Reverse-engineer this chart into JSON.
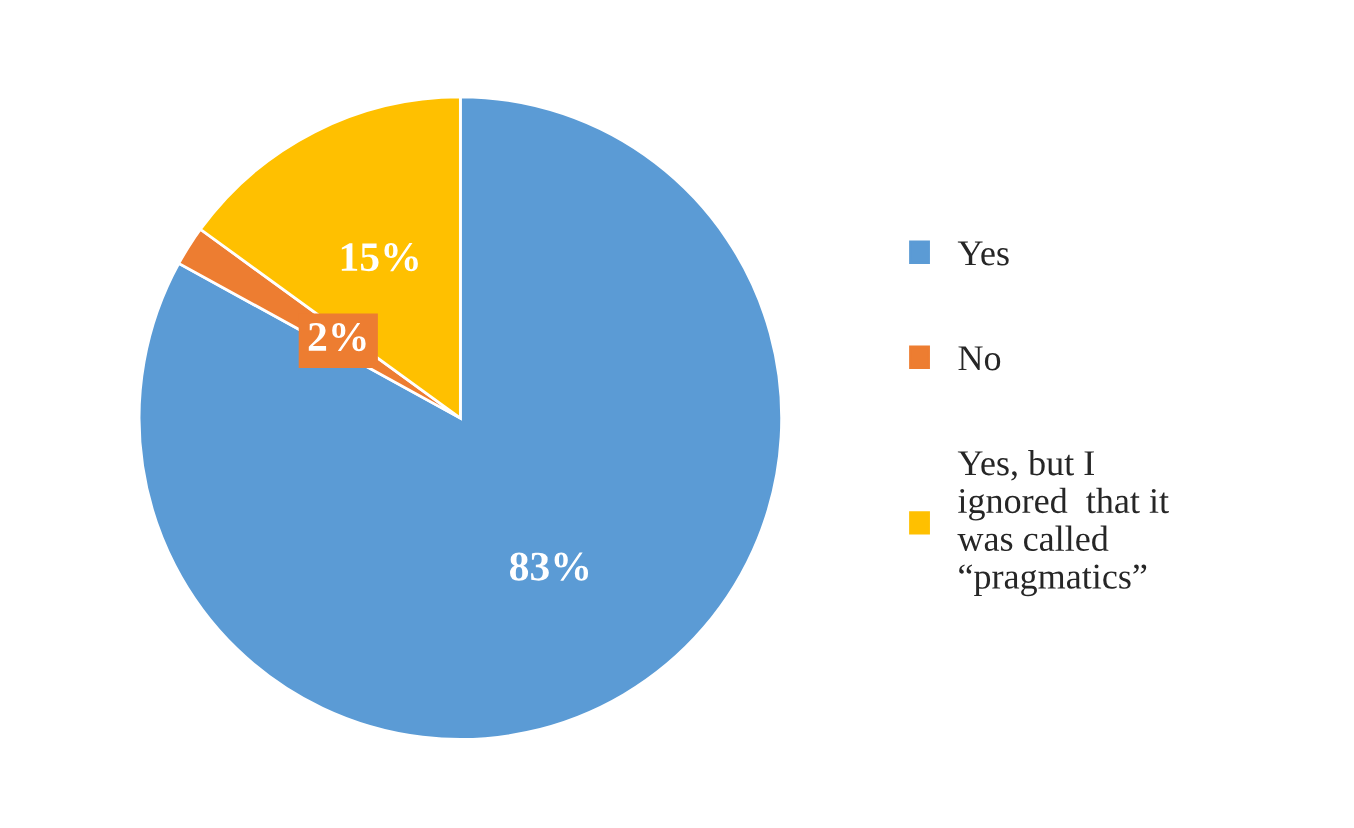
{
  "chart_data": {
    "type": "pie",
    "categories": [
      "Yes",
      "No",
      "Yes, but I\nignored  that it\nwas called\n“pragmatics”"
    ],
    "values": [
      83,
      2,
      15
    ],
    "colors": [
      "#5b9bd5",
      "#ed7d31",
      "#ffc000"
    ],
    "value_labels": [
      "83%",
      "2%",
      "15%"
    ],
    "legend": "right"
  }
}
